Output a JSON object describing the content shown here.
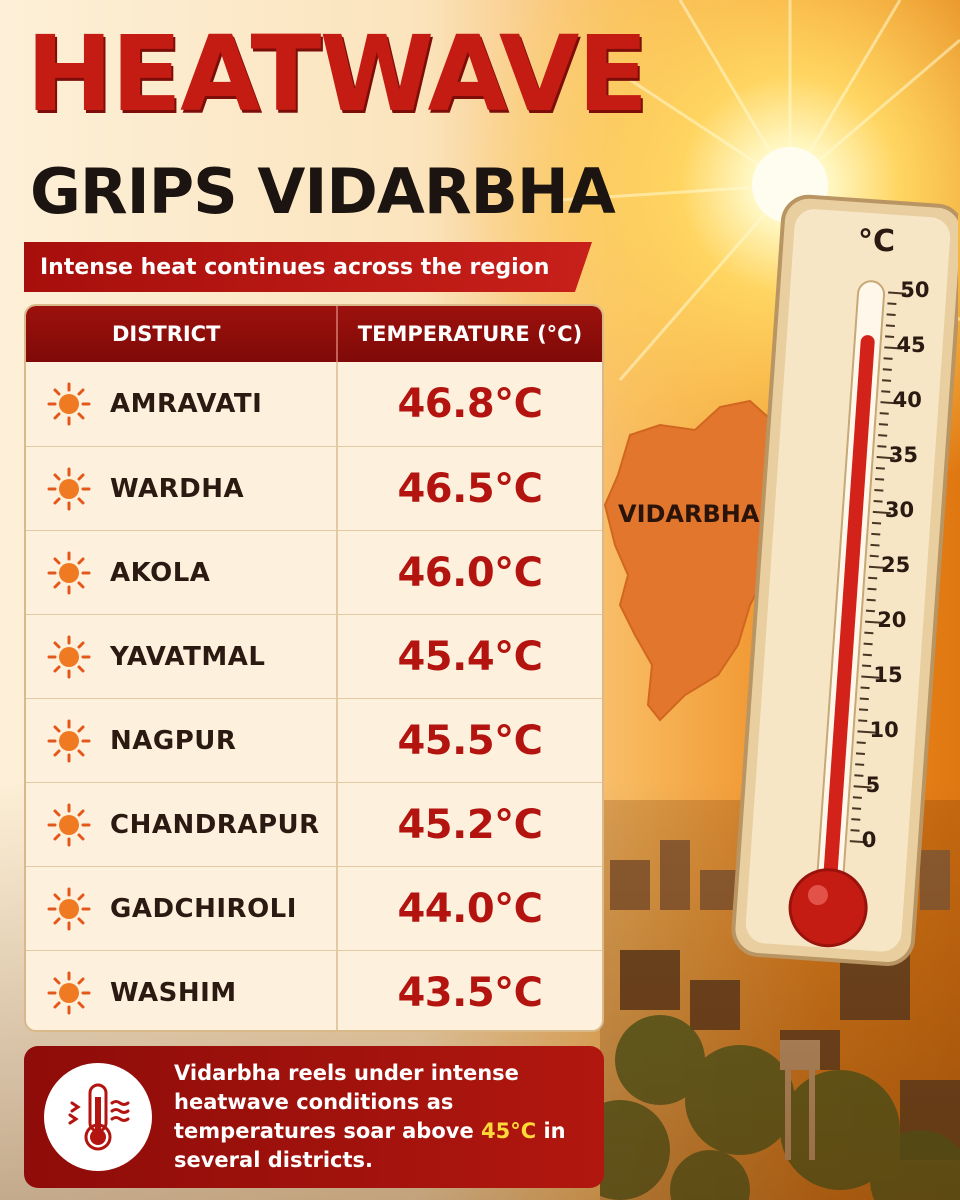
{
  "title": {
    "line1": "HEATWAVE",
    "line2": "GRIPS VIDARBHA",
    "subtitle": "Intense heat continues across the region"
  },
  "table": {
    "headers": [
      "DISTRICT",
      "TEMPERATURE (°C)"
    ],
    "rows": [
      {
        "district": "AMRAVATI",
        "temp": "46.8°C"
      },
      {
        "district": "WARDHA",
        "temp": "46.5°C"
      },
      {
        "district": "AKOLA",
        "temp": "46.0°C"
      },
      {
        "district": "YAVATMAL",
        "temp": "45.4°C"
      },
      {
        "district": "NAGPUR",
        "temp": "45.5°C"
      },
      {
        "district": "CHANDRAPUR",
        "temp": "45.2°C"
      },
      {
        "district": "GADCHIROLI",
        "temp": "44.0°C"
      },
      {
        "district": "WASHIM",
        "temp": "43.5°C"
      }
    ]
  },
  "callout": {
    "text_before": "Vidarbha reels under intense heatwave conditions as temperatures soar above ",
    "highlight": "45°C",
    "text_after": " in several districts."
  },
  "map": {
    "label": "VIDARBHA"
  },
  "thermometer": {
    "unit": "°C",
    "scale_labels": [
      "50",
      "45",
      "40",
      "35",
      "30",
      "25",
      "20",
      "15",
      "10",
      "5",
      "0"
    ],
    "scale_max": 50,
    "reading": 46
  },
  "colors": {
    "title_red": "#c41c13",
    "temp_red": "#b3140f",
    "header_red": "#9c110d",
    "highlight_yellow": "#ffd83a"
  }
}
